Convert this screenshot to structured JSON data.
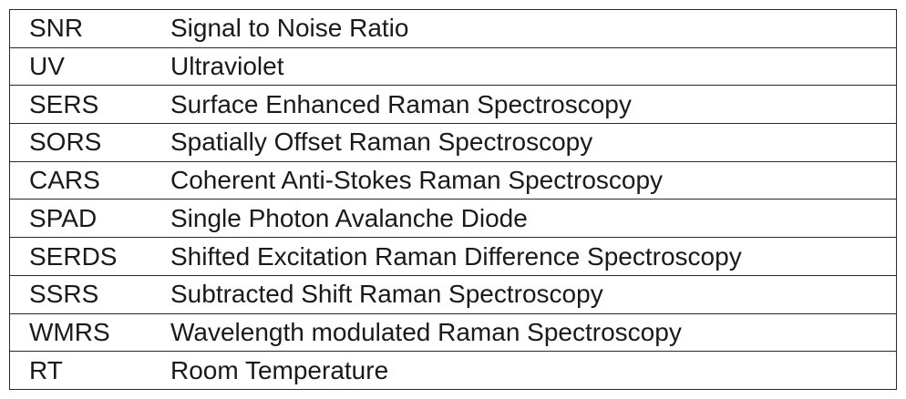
{
  "table": {
    "rows": [
      [
        "SNR",
        "Signal to Noise Ratio"
      ],
      [
        "UV",
        "Ultraviolet"
      ],
      [
        "SERS",
        "Surface Enhanced Raman Spectroscopy"
      ],
      [
        "SORS",
        "Spatially Offset Raman Spectroscopy"
      ],
      [
        "CARS",
        "Coherent Anti-Stokes Raman Spectroscopy"
      ],
      [
        "SPAD",
        "Single Photon Avalanche Diode"
      ],
      [
        "SERDS",
        "Shifted Excitation Raman Difference Spectroscopy"
      ],
      [
        "SSRS",
        "Subtracted Shift Raman Spectroscopy"
      ],
      [
        "WMRS",
        "Wavelength modulated Raman Spectroscopy"
      ],
      [
        "RT",
        "Room Temperature"
      ]
    ]
  }
}
